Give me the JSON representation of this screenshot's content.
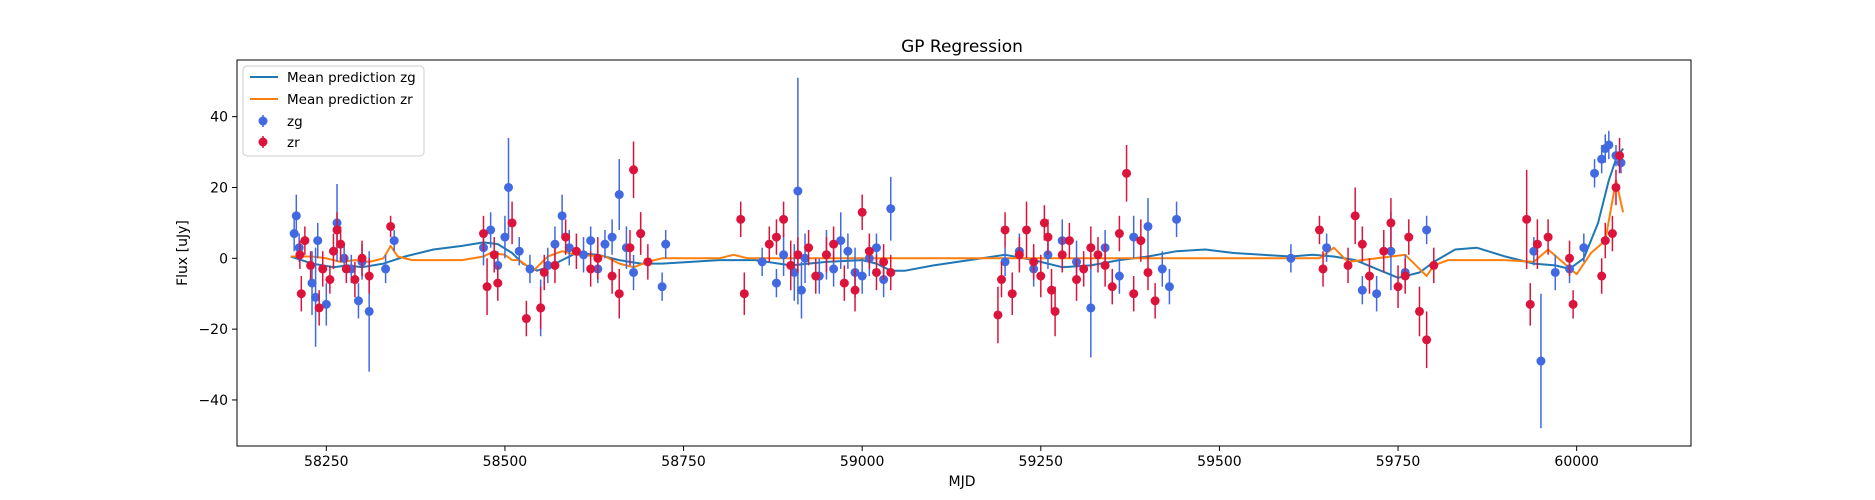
{
  "chart_data": {
    "type": "scatter",
    "title": "GP Regression",
    "xlabel": "MJD",
    "ylabel": "Flux [uJy]",
    "xlim": [
      58125,
      60160
    ],
    "ylim": [
      -53,
      56
    ],
    "xticks": [
      58250,
      58500,
      58750,
      59000,
      59250,
      59500,
      59750,
      60000
    ],
    "yticks": [
      -40,
      -20,
      0,
      20,
      40
    ],
    "legend_position": "upper-left",
    "colors": {
      "zg": "#4169e1",
      "zr": "#dc143c",
      "mean_zg": "#1f77b4",
      "mean_zr": "#ff7f0e"
    },
    "lines": [
      {
        "name": "Mean prediction zg",
        "x": [
          58200,
          58230,
          58260,
          58280,
          58300,
          58330,
          58360,
          58400,
          58440,
          58470,
          58490,
          58510,
          58525,
          58545,
          58560,
          58580,
          58600,
          58630,
          58660,
          58690,
          58720,
          58760,
          58800,
          58850,
          58900,
          58950,
          59000,
          59020,
          59040,
          59060,
          59100,
          59150,
          59200,
          59240,
          59280,
          59320,
          59360,
          59400,
          59440,
          59480,
          59520,
          59560,
          59600,
          59630,
          59660,
          59690,
          59720,
          59750,
          59780,
          59800,
          59830,
          59860,
          59900,
          59940,
          59970,
          59990,
          60010,
          60030,
          60045,
          60055,
          60065
        ],
        "y": [
          0.5,
          -1.5,
          -2.5,
          -2.0,
          -2.5,
          -1.5,
          0.5,
          2.5,
          3.5,
          4.5,
          4.0,
          1.5,
          -1.5,
          -3.5,
          -2.5,
          -0.5,
          1.5,
          1.0,
          -0.5,
          -1.5,
          -1.5,
          -1.0,
          -0.5,
          -0.5,
          -2.0,
          -1.0,
          -0.5,
          -1.5,
          -3.5,
          -3.5,
          -2.0,
          -0.5,
          1.0,
          -0.5,
          -2.5,
          -2.0,
          -0.5,
          0.5,
          2.0,
          2.5,
          1.5,
          1.0,
          0.5,
          1.0,
          0.5,
          -0.5,
          -3.0,
          -5.5,
          -4.0,
          -1.0,
          2.5,
          3.0,
          0.5,
          -1.5,
          -2.0,
          -3.0,
          0.0,
          10.0,
          22.0,
          28.0,
          31.0
        ]
      },
      {
        "name": "Mean prediction zr",
        "x": [
          58200,
          58230,
          58250,
          58270,
          58290,
          58310,
          58330,
          58340,
          58350,
          58370,
          58400,
          58440,
          58470,
          58480,
          58500,
          58510,
          58520,
          58540,
          58560,
          58580,
          58600,
          58640,
          58660,
          58680,
          58700,
          58720,
          58760,
          58800,
          58820,
          58840,
          58860,
          58900,
          58950,
          59000,
          59050,
          59100,
          59150,
          59200,
          59250,
          59300,
          59350,
          59400,
          59440,
          59480,
          59520,
          59560,
          59600,
          59640,
          59660,
          59680,
          59720,
          59760,
          59780,
          59790,
          59800,
          59820,
          59860,
          59900,
          59940,
          59960,
          59980,
          60000,
          60020,
          60040,
          60055,
          60065
        ],
        "y": [
          0.5,
          0.5,
          0.0,
          -1.0,
          -0.5,
          -1.0,
          0.0,
          3.5,
          0.5,
          -0.5,
          -0.5,
          -0.5,
          0.5,
          1.5,
          1.0,
          -0.5,
          -0.5,
          -3.5,
          0.5,
          2.0,
          1.0,
          0.5,
          -1.5,
          -2.5,
          -1.0,
          0.0,
          0.0,
          0.0,
          1.0,
          0.0,
          0.0,
          0.0,
          0.0,
          0.0,
          0.0,
          0.0,
          0.0,
          0.0,
          0.0,
          0.0,
          0.0,
          0.0,
          0.0,
          0.0,
          0.0,
          0.0,
          0.0,
          0.0,
          3.0,
          -1.0,
          0.0,
          1.0,
          -3.0,
          -5.0,
          -2.0,
          -0.5,
          -0.5,
          -0.5,
          -1.0,
          2.5,
          -1.0,
          -4.5,
          1.5,
          5.0,
          22.0,
          13.0
        ]
      }
    ],
    "series": [
      {
        "name": "zg",
        "x": [
          58205,
          58208,
          58212,
          58230,
          58235,
          58238,
          58250,
          58265,
          58275,
          58285,
          58295,
          58300,
          58310,
          58333,
          58345,
          58470,
          58480,
          58490,
          58500,
          58505,
          58520,
          58535,
          58550,
          58560,
          58570,
          58580,
          58590,
          58610,
          58620,
          58630,
          58640,
          58650,
          58660,
          58670,
          58680,
          58690,
          58720,
          58725,
          58860,
          58880,
          58890,
          58905,
          58910,
          58915,
          58920,
          58940,
          58950,
          58960,
          58970,
          58980,
          58990,
          59000,
          59010,
          59020,
          59030,
          59040,
          59200,
          59220,
          59240,
          59260,
          59280,
          59300,
          59320,
          59340,
          59360,
          59380,
          59400,
          59420,
          59430,
          59440,
          59600,
          59650,
          59700,
          59720,
          59740,
          59760,
          59790,
          59940,
          59950,
          59970,
          59990,
          60010,
          60025,
          60035,
          60040,
          60045,
          60055,
          60062
        ],
        "y": [
          7,
          12,
          3,
          -7,
          -11,
          5,
          -13,
          10,
          0,
          -3,
          -12,
          -1,
          -15,
          -3,
          5,
          3,
          8,
          -2,
          6,
          20,
          2,
          -3,
          -14,
          -2,
          4,
          12,
          3,
          1,
          5,
          -3,
          4,
          6,
          18,
          3,
          -4,
          7,
          -8,
          4,
          -1,
          -7,
          1,
          -4,
          19,
          -9,
          0,
          -5,
          1,
          -3,
          5,
          2,
          -4,
          -5,
          0,
          3,
          -6,
          14,
          -1,
          2,
          -3,
          1,
          5,
          -1,
          -14,
          3,
          -5,
          6,
          9,
          -3,
          -8,
          11,
          0,
          3,
          -9,
          -10,
          2,
          -4,
          8,
          2,
          -29,
          -4,
          -3,
          3,
          24,
          28,
          31,
          32,
          29,
          27
        ],
        "err": [
          5,
          6,
          4,
          9,
          14,
          5,
          6,
          11,
          4,
          4,
          5,
          5,
          17,
          4,
          3,
          5,
          5,
          4,
          6,
          14,
          4,
          4,
          8,
          5,
          5,
          6,
          5,
          5,
          4,
          4,
          4,
          5,
          10,
          6,
          5,
          6,
          4,
          4,
          4,
          4,
          6,
          8,
          32,
          8,
          7,
          5,
          7,
          5,
          8,
          5,
          7,
          5,
          5,
          4,
          5,
          9,
          4,
          5,
          5,
          4,
          6,
          6,
          14,
          5,
          5,
          6,
          8,
          5,
          5,
          5,
          4,
          4,
          4,
          5,
          11,
          5,
          4,
          4,
          19,
          5,
          4,
          4,
          4,
          4,
          4,
          4,
          3,
          3
        ]
      },
      {
        "name": "zr",
        "x": [
          58213,
          58215,
          58220,
          58228,
          58240,
          58245,
          58255,
          58260,
          58265,
          58270,
          58278,
          58290,
          58300,
          58310,
          58340,
          58470,
          58475,
          58485,
          58490,
          58510,
          58530,
          58550,
          58555,
          58570,
          58585,
          58600,
          58620,
          58630,
          58650,
          58660,
          58675,
          58680,
          58690,
          58700,
          58830,
          58835,
          58870,
          58880,
          58890,
          58900,
          58910,
          58925,
          58935,
          58950,
          58960,
          58975,
          58990,
          59000,
          59010,
          59020,
          59030,
          59040,
          59190,
          59195,
          59200,
          59210,
          59220,
          59230,
          59240,
          59250,
          59255,
          59260,
          59265,
          59270,
          59280,
          59290,
          59300,
          59310,
          59320,
          59330,
          59340,
          59350,
          59360,
          59370,
          59380,
          59390,
          59400,
          59410,
          59640,
          59645,
          59680,
          59690,
          59700,
          59710,
          59730,
          59740,
          59750,
          59760,
          59765,
          59780,
          59790,
          59800,
          59930,
          59935,
          59945,
          59960,
          59990,
          59995,
          60035,
          60040,
          60050,
          60055,
          60060
        ],
        "y": [
          1,
          -10,
          5,
          -2,
          -14,
          -3,
          -6,
          2,
          8,
          4,
          -3,
          -6,
          0,
          -5,
          9,
          7,
          -8,
          1,
          -7,
          10,
          -17,
          -14,
          -4,
          -2,
          6,
          2,
          -3,
          0,
          -5,
          -10,
          3,
          25,
          7,
          -1,
          11,
          -10,
          4,
          6,
          11,
          -2,
          1,
          3,
          -5,
          1,
          4,
          -7,
          -9,
          13,
          2,
          -4,
          -1,
          -4,
          -16,
          -6,
          8,
          -10,
          1,
          8,
          -1,
          -5,
          10,
          6,
          -9,
          -15,
          1,
          5,
          -6,
          -3,
          3,
          1,
          -2,
          -8,
          7,
          24,
          -10,
          5,
          -4,
          -12,
          8,
          -3,
          -2,
          12,
          4,
          -5,
          2,
          10,
          -8,
          -5,
          6,
          -15,
          -23,
          -2,
          11,
          -13,
          4,
          6,
          0,
          -13,
          -5,
          5,
          7,
          20,
          29
        ],
        "err": [
          4,
          5,
          4,
          4,
          5,
          5,
          4,
          5,
          5,
          5,
          4,
          5,
          5,
          5,
          3,
          5,
          8,
          5,
          5,
          6,
          5,
          6,
          5,
          5,
          5,
          5,
          5,
          6,
          5,
          7,
          5,
          8,
          6,
          5,
          5,
          6,
          5,
          5,
          5,
          7,
          5,
          5,
          5,
          5,
          5,
          5,
          6,
          5,
          5,
          5,
          5,
          5,
          8,
          5,
          5,
          6,
          5,
          8,
          5,
          6,
          5,
          5,
          6,
          7,
          5,
          5,
          6,
          5,
          6,
          5,
          6,
          5,
          5,
          8,
          5,
          6,
          5,
          5,
          4,
          5,
          5,
          8,
          5,
          5,
          6,
          7,
          6,
          5,
          5,
          7,
          8,
          5,
          14,
          6,
          7,
          5,
          5,
          4,
          5,
          5,
          5,
          5,
          5
        ]
      }
    ]
  }
}
